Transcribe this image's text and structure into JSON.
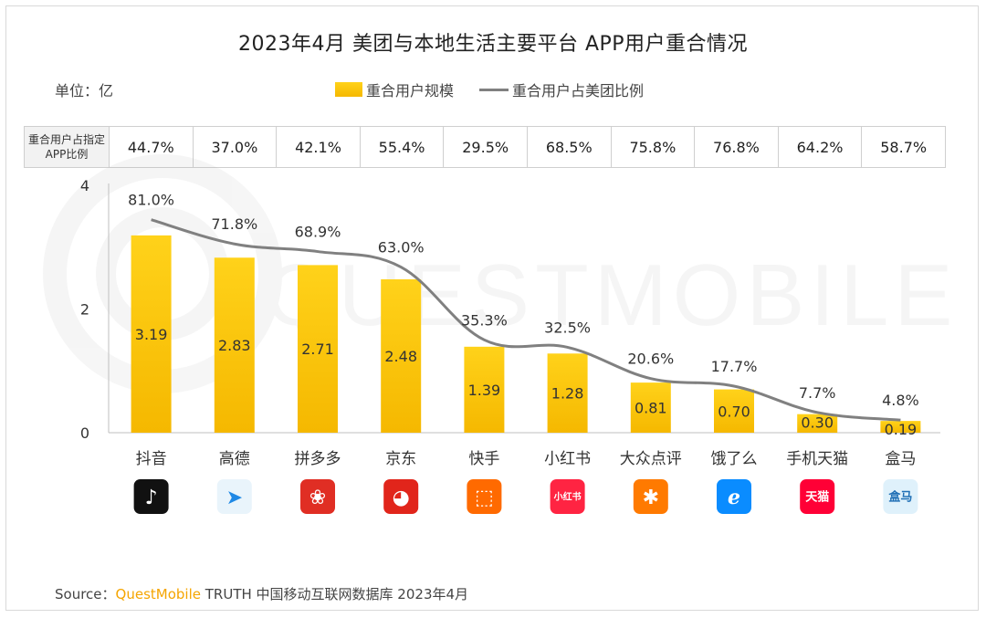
{
  "title": "2023年4月 美团与本地生活主要平台 APP用户重合情况",
  "unit": "单位：亿",
  "legend": {
    "bar": "重合用户规模",
    "line": "重合用户占美团比例"
  },
  "ratio_table": {
    "header": "重合用户占指定APP比例",
    "values": [
      "44.7%",
      "37.0%",
      "42.1%",
      "55.4%",
      "29.5%",
      "68.5%",
      "75.8%",
      "76.8%",
      "64.2%",
      "58.7%"
    ]
  },
  "watermark": "QUESTMOBILE",
  "colors": {
    "bar": "#f5b800",
    "bar_top": "#ffd21a",
    "line": "#808080",
    "brand": "#f5a500"
  },
  "chart_data": {
    "type": "bar",
    "categories": [
      "抖音",
      "高德",
      "拼多多",
      "京东",
      "快手",
      "小红书",
      "大众点评",
      "饿了么",
      "手机天猫",
      "盒马"
    ],
    "series": [
      {
        "name": "重合用户规模",
        "type": "bar",
        "values": [
          3.19,
          2.83,
          2.71,
          2.48,
          1.39,
          1.28,
          0.81,
          0.7,
          0.3,
          0.19
        ],
        "labels": [
          "3.19",
          "2.83",
          "2.71",
          "2.48",
          "1.39",
          "1.28",
          "0.81",
          "0.70",
          "0.30",
          "0.19"
        ]
      },
      {
        "name": "重合用户占美团比例",
        "type": "line",
        "values": [
          81.0,
          71.8,
          68.9,
          63.0,
          35.3,
          32.5,
          20.6,
          17.7,
          7.7,
          4.8
        ],
        "labels": [
          "81.0%",
          "71.8%",
          "68.9%",
          "63.0%",
          "35.3%",
          "32.5%",
          "20.6%",
          "17.7%",
          "7.7%",
          "4.8%"
        ]
      }
    ],
    "yaxis": {
      "ticks": [
        "0",
        "2",
        "4"
      ],
      "ylim": [
        0,
        4
      ]
    },
    "line_scale": [
      0,
      100
    ],
    "grid": false,
    "legend_position": "top-center"
  },
  "app_icons": [
    {
      "name": "douyin-icon",
      "bg": "#111111",
      "glyph": "♪",
      "color": "#ffffff"
    },
    {
      "name": "gaode-icon",
      "bg": "#e9f4fb",
      "glyph": "➤",
      "color": "#1e88e5"
    },
    {
      "name": "pinduoduo-icon",
      "bg": "#e02e24",
      "glyph": "❀",
      "color": "#ffffff"
    },
    {
      "name": "jd-icon",
      "bg": "#e1251b",
      "glyph": "◕",
      "color": "#ffffff"
    },
    {
      "name": "kuaishou-icon",
      "bg": "#ff6a00",
      "glyph": "⬚",
      "color": "#ffffff"
    },
    {
      "name": "xiaohongshu-icon",
      "bg": "#ff2442",
      "glyph": "小红书",
      "color": "#ffffff"
    },
    {
      "name": "dianping-icon",
      "bg": "#ff7a00",
      "glyph": "✱",
      "color": "#ffffff"
    },
    {
      "name": "eleme-icon",
      "bg": "#0a8cff",
      "glyph": "ℯ",
      "color": "#ffffff"
    },
    {
      "name": "tmall-icon",
      "bg": "#ff0036",
      "glyph": "天猫",
      "color": "#ffffff"
    },
    {
      "name": "hema-icon",
      "bg": "#dff1fb",
      "glyph": "盒马",
      "color": "#1f6fb5"
    }
  ],
  "source": {
    "prefix": "Source：",
    "brand": "QuestMobile",
    "rest": "TRUTH 中国移动互联网数据库 2023年4月"
  }
}
